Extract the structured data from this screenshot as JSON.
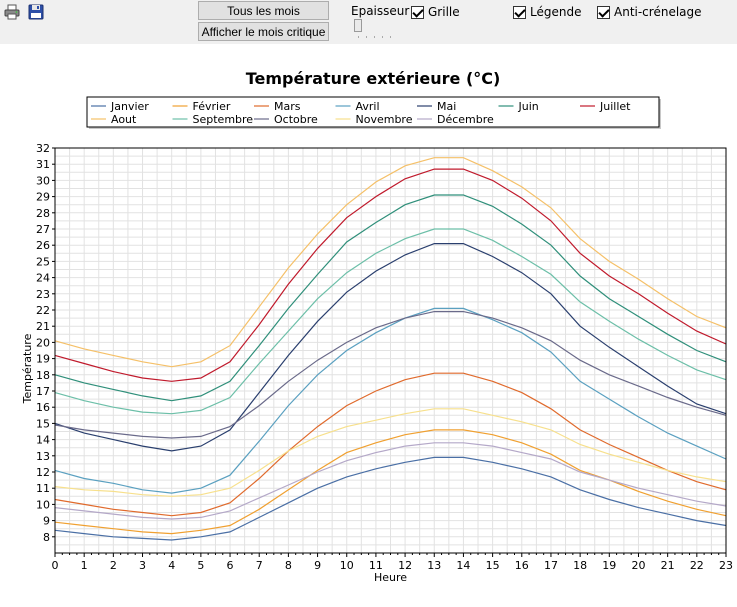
{
  "toolbar": {
    "print_icon": "printer-icon",
    "save_icon": "floppy-disk-icon",
    "btn_all_months": "Tous les mois",
    "btn_critical_month": "Afficher le mois critique",
    "thickness_label": "Epaisseur",
    "grid_label": "Grille",
    "legend_label": "Légende",
    "antialias_label": "Anti-crénelage",
    "grid_checked": true,
    "legend_checked": true,
    "antialias_checked": true
  },
  "chart_data": {
    "type": "line",
    "title": "Température extérieure (°C)",
    "xlabel": "Heure",
    "ylabel": "Température",
    "xlim": [
      0,
      23
    ],
    "ylim": [
      7,
      32
    ],
    "grid": true,
    "legend_position": "top",
    "x": [
      0,
      1,
      2,
      3,
      4,
      5,
      6,
      7,
      8,
      9,
      10,
      11,
      12,
      13,
      14,
      15,
      16,
      17,
      18,
      19,
      20,
      21,
      22,
      23
    ],
    "series": [
      {
        "name": "Janvier",
        "color": "#4a6fa5",
        "values": [
          8.4,
          8.2,
          8.0,
          7.9,
          7.8,
          8.0,
          8.3,
          9.2,
          10.1,
          11.0,
          11.7,
          12.2,
          12.6,
          12.9,
          12.9,
          12.6,
          12.2,
          11.7,
          10.9,
          10.3,
          9.8,
          9.4,
          9.0,
          8.7
        ]
      },
      {
        "name": "Février",
        "color": "#f0a030",
        "values": [
          8.9,
          8.7,
          8.5,
          8.3,
          8.2,
          8.4,
          8.7,
          9.7,
          10.9,
          12.1,
          13.2,
          13.8,
          14.3,
          14.6,
          14.6,
          14.3,
          13.8,
          13.1,
          12.1,
          11.5,
          10.8,
          10.2,
          9.7,
          9.3
        ]
      },
      {
        "name": "Mars",
        "color": "#e06a2c",
        "values": [
          10.3,
          10.0,
          9.7,
          9.5,
          9.3,
          9.5,
          10.1,
          11.6,
          13.3,
          14.8,
          16.1,
          17.0,
          17.7,
          18.1,
          18.1,
          17.6,
          16.9,
          15.9,
          14.6,
          13.7,
          12.9,
          12.1,
          11.4,
          10.9
        ]
      },
      {
        "name": "Avril",
        "color": "#5aa0c0",
        "values": [
          12.1,
          11.6,
          11.3,
          10.9,
          10.7,
          11.0,
          11.8,
          13.9,
          16.1,
          18.0,
          19.5,
          20.6,
          21.5,
          22.1,
          22.1,
          21.4,
          20.6,
          19.4,
          17.6,
          16.5,
          15.4,
          14.4,
          13.6,
          12.8
        ]
      },
      {
        "name": "Mai",
        "color": "#2a3f6e",
        "values": [
          15.0,
          14.4,
          14.0,
          13.6,
          13.3,
          13.6,
          14.6,
          16.9,
          19.2,
          21.3,
          23.1,
          24.4,
          25.4,
          26.1,
          26.1,
          25.3,
          24.3,
          23.0,
          21.0,
          19.7,
          18.5,
          17.3,
          16.2,
          15.6
        ]
      },
      {
        "name": "Juin",
        "color": "#2f8f7a",
        "values": [
          18.0,
          17.5,
          17.1,
          16.7,
          16.4,
          16.7,
          17.6,
          19.8,
          22.1,
          24.2,
          26.2,
          27.4,
          28.5,
          29.1,
          29.1,
          28.4,
          27.3,
          26.0,
          24.1,
          22.7,
          21.6,
          20.5,
          19.5,
          18.8
        ]
      },
      {
        "name": "Juillet",
        "color": "#c01a2c",
        "values": [
          19.2,
          18.7,
          18.2,
          17.8,
          17.6,
          17.8,
          18.8,
          21.1,
          23.6,
          25.8,
          27.7,
          29.0,
          30.1,
          30.7,
          30.7,
          30.0,
          28.9,
          27.5,
          25.5,
          24.1,
          23.0,
          21.8,
          20.7,
          19.9
        ]
      },
      {
        "name": "Aout",
        "color": "#f5c068",
        "values": [
          20.1,
          19.6,
          19.2,
          18.8,
          18.5,
          18.8,
          19.8,
          22.2,
          24.6,
          26.7,
          28.5,
          29.9,
          30.9,
          31.4,
          31.4,
          30.6,
          29.6,
          28.3,
          26.4,
          25.0,
          23.9,
          22.7,
          21.6,
          20.9
        ]
      },
      {
        "name": "Septembre",
        "color": "#6cbfa8",
        "values": [
          16.9,
          16.4,
          16.0,
          15.7,
          15.6,
          15.8,
          16.6,
          18.7,
          20.7,
          22.7,
          24.3,
          25.5,
          26.4,
          27.0,
          27.0,
          26.3,
          25.3,
          24.2,
          22.5,
          21.3,
          20.2,
          19.2,
          18.3,
          17.7
        ]
      },
      {
        "name": "Octobre",
        "color": "#6a6a8a",
        "values": [
          14.9,
          14.6,
          14.4,
          14.2,
          14.1,
          14.2,
          14.8,
          16.1,
          17.6,
          18.9,
          20.0,
          20.9,
          21.5,
          21.9,
          21.9,
          21.5,
          20.9,
          20.1,
          18.9,
          18.0,
          17.3,
          16.6,
          16.0,
          15.5
        ]
      },
      {
        "name": "Novembre",
        "color": "#f7e08c",
        "values": [
          11.1,
          10.9,
          10.8,
          10.6,
          10.5,
          10.6,
          11.0,
          12.1,
          13.3,
          14.2,
          14.8,
          15.2,
          15.6,
          15.9,
          15.9,
          15.5,
          15.1,
          14.6,
          13.7,
          13.1,
          12.6,
          12.1,
          11.7,
          11.4
        ]
      },
      {
        "name": "Décembre",
        "color": "#b4a8c8",
        "values": [
          9.8,
          9.6,
          9.4,
          9.2,
          9.1,
          9.2,
          9.6,
          10.4,
          11.2,
          12.0,
          12.7,
          13.2,
          13.6,
          13.8,
          13.8,
          13.6,
          13.2,
          12.8,
          12.0,
          11.5,
          11.0,
          10.6,
          10.2,
          9.9
        ]
      }
    ]
  }
}
